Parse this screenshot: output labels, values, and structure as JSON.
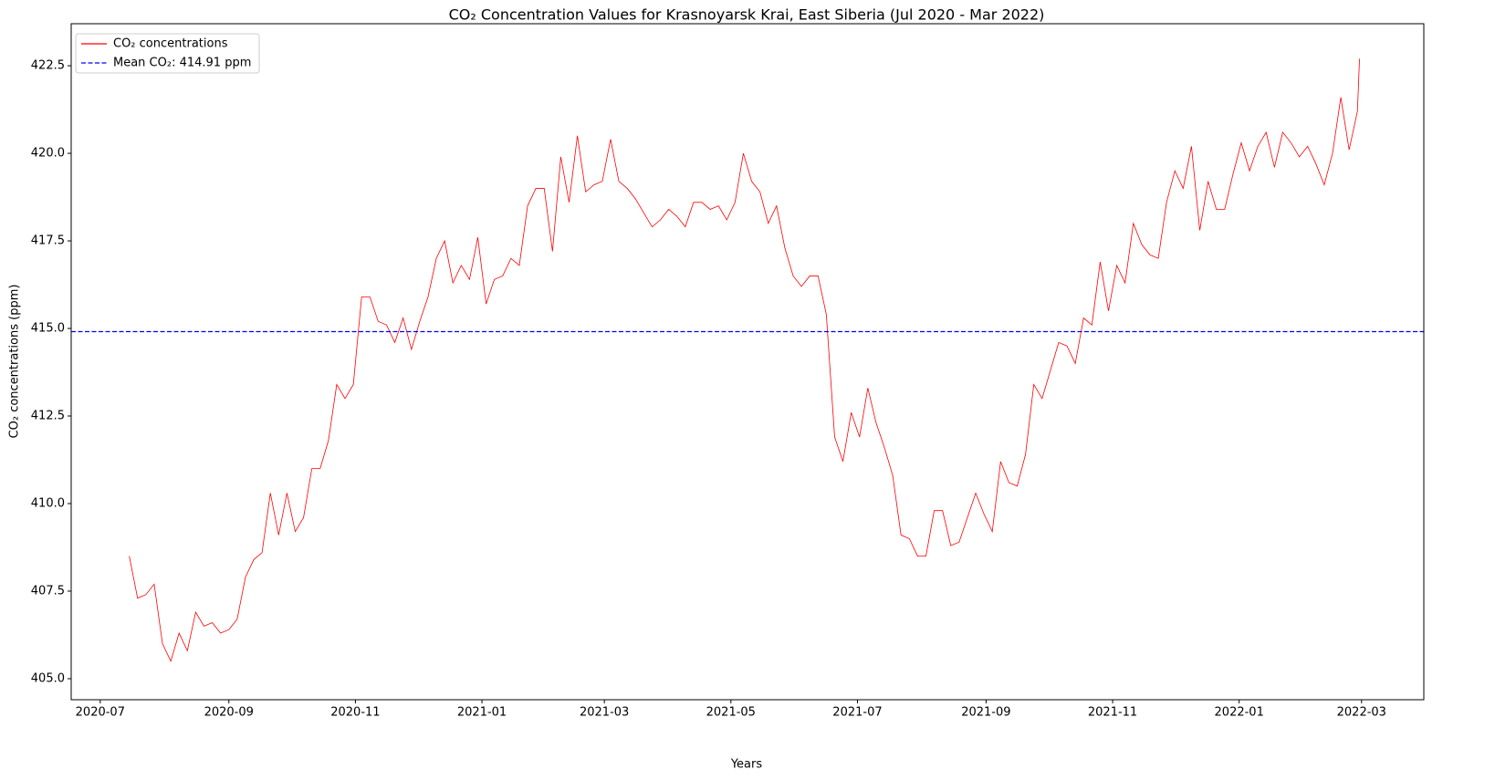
{
  "chart_data": {
    "type": "line",
    "title": "CO₂ Concentration Values for Krasnoyarsk Krai, East Siberia (Jul 2020 - Mar 2022)",
    "x_label": "Years",
    "y_label": "CO₂ concentrations (ppm)",
    "legend": "upper left",
    "xlim": [
      "2020-06-17",
      "2022-03-31"
    ],
    "xticks": [
      "2020-07",
      "2020-09",
      "2020-11",
      "2021-01",
      "2021-03",
      "2021-05",
      "2021-07",
      "2021-09",
      "2021-11",
      "2022-01",
      "2022-03"
    ],
    "ylim": [
      404.4,
      423.7
    ],
    "yticks": [
      {
        "value": 405,
        "label": "405.0"
      },
      407.5,
      {
        "value": 410,
        "label": "410.0"
      },
      412.5,
      {
        "value": 415,
        "label": "415.0"
      },
      417.5,
      {
        "value": 420,
        "label": "420.0"
      },
      422.5
    ],
    "x": [
      "2020-07-15",
      "2020-07-19",
      "2020-07-23",
      "2020-07-27",
      "2020-07-31",
      "2020-08-04",
      "2020-08-08",
      "2020-08-12",
      "2020-08-16",
      "2020-08-20",
      "2020-08-24",
      "2020-08-28",
      "2020-09-01",
      "2020-09-05",
      "2020-09-09",
      "2020-09-13",
      "2020-09-17",
      "2020-09-21",
      "2020-09-25",
      "2020-09-29",
      "2020-10-03",
      "2020-10-07",
      "2020-10-11",
      "2020-10-15",
      "2020-10-19",
      "2020-10-23",
      "2020-10-27",
      "2020-10-31",
      "2020-11-04",
      "2020-11-08",
      "2020-11-12",
      "2020-11-16",
      "2020-11-20",
      "2020-11-24",
      "2020-11-28",
      "2020-12-02",
      "2020-12-06",
      "2020-12-10",
      "2020-12-14",
      "2020-12-18",
      "2020-12-22",
      "2020-12-26",
      "2020-12-30",
      "2021-01-03",
      "2021-01-07",
      "2021-01-11",
      "2021-01-15",
      "2021-01-19",
      "2021-01-23",
      "2021-01-27",
      "2021-01-31",
      "2021-02-04",
      "2021-02-08",
      "2021-02-12",
      "2021-02-16",
      "2021-02-20",
      "2021-02-24",
      "2021-02-28",
      "2021-03-04",
      "2021-03-08",
      "2021-03-12",
      "2021-03-16",
      "2021-03-20",
      "2021-03-24",
      "2021-03-28",
      "2021-04-01",
      "2021-04-05",
      "2021-04-09",
      "2021-04-13",
      "2021-04-17",
      "2021-04-21",
      "2021-04-25",
      "2021-04-29",
      "2021-05-03",
      "2021-05-07",
      "2021-05-11",
      "2021-05-15",
      "2021-05-19",
      "2021-05-23",
      "2021-05-27",
      "2021-05-31",
      "2021-06-04",
      "2021-06-08",
      "2021-06-12",
      "2021-06-16",
      "2021-06-20",
      "2021-06-24",
      "2021-06-28",
      "2021-07-02",
      "2021-07-06",
      "2021-07-10",
      "2021-07-14",
      "2021-07-18",
      "2021-07-22",
      "2021-07-26",
      "2021-07-30",
      "2021-08-03",
      "2021-08-07",
      "2021-08-11",
      "2021-08-15",
      "2021-08-19",
      "2021-08-23",
      "2021-08-27",
      "2021-08-31",
      "2021-09-04",
      "2021-09-08",
      "2021-09-12",
      "2021-09-16",
      "2021-09-20",
      "2021-09-24",
      "2021-09-28",
      "2021-10-02",
      "2021-10-06",
      "2021-10-10",
      "2021-10-14",
      "2021-10-18",
      "2021-10-22",
      "2021-10-26",
      "2021-10-30",
      "2021-11-03",
      "2021-11-07",
      "2021-11-11",
      "2021-11-15",
      "2021-11-19",
      "2021-11-23",
      "2021-11-27",
      "2021-12-01",
      "2021-12-05",
      "2021-12-09",
      "2021-12-13",
      "2021-12-17",
      "2021-12-21",
      "2021-12-25",
      "2021-12-29",
      "2022-01-02",
      "2022-01-06",
      "2022-01-10",
      "2022-01-14",
      "2022-01-18",
      "2022-01-22",
      "2022-01-26",
      "2022-01-30",
      "2022-02-03",
      "2022-02-07",
      "2022-02-11",
      "2022-02-15",
      "2022-02-19",
      "2022-02-23",
      "2022-02-27",
      "2022-02-28"
    ],
    "series": [
      {
        "name": "CO₂ concentrations",
        "color": "#ff0000",
        "values": [
          408.5,
          407.3,
          407.4,
          407.7,
          406.0,
          405.5,
          406.3,
          405.8,
          406.9,
          406.5,
          406.6,
          406.3,
          406.4,
          406.7,
          407.9,
          408.4,
          408.6,
          410.3,
          409.1,
          410.3,
          409.2,
          409.6,
          411.0,
          411.0,
          411.8,
          413.4,
          413.0,
          413.4,
          415.9,
          415.9,
          415.2,
          415.1,
          414.6,
          415.3,
          414.4,
          415.2,
          415.9,
          417.0,
          417.5,
          416.3,
          416.8,
          416.4,
          417.6,
          415.7,
          416.4,
          416.5,
          417.0,
          416.8,
          418.5,
          419.0,
          419.0,
          417.2,
          419.9,
          418.6,
          420.5,
          418.9,
          419.1,
          419.2,
          420.4,
          419.2,
          419.0,
          418.7,
          418.3,
          417.9,
          418.1,
          418.4,
          418.2,
          417.9,
          418.6,
          418.6,
          418.4,
          418.5,
          418.1,
          418.6,
          420.0,
          419.2,
          418.9,
          418.0,
          418.5,
          417.3,
          416.5,
          416.2,
          416.5,
          416.5,
          415.4,
          411.9,
          411.2,
          412.6,
          411.9,
          413.3,
          412.3,
          411.6,
          410.8,
          409.1,
          409.0,
          408.5,
          408.5,
          409.8,
          409.8,
          408.8,
          408.9,
          409.6,
          410.3,
          409.7,
          409.2,
          411.2,
          410.6,
          410.5,
          411.4,
          413.4,
          413.0,
          413.8,
          414.6,
          414.5,
          414.0,
          415.3,
          415.1,
          416.9,
          415.5,
          416.8,
          416.3,
          418.0,
          417.4,
          417.1,
          417.0,
          418.6,
          419.5,
          419.0,
          420.2,
          417.8,
          419.2,
          418.4,
          418.4,
          419.4,
          420.3,
          419.5,
          420.2,
          420.6,
          419.6,
          420.6,
          420.3,
          419.9,
          420.2,
          419.7,
          419.1,
          420.0,
          421.6,
          420.1,
          421.2,
          422.7
        ]
      }
    ],
    "mean_line": {
      "name": "Mean CO₂: 414.91 ppm",
      "value": 414.91,
      "color": "#0000ff",
      "dash": true
    }
  }
}
